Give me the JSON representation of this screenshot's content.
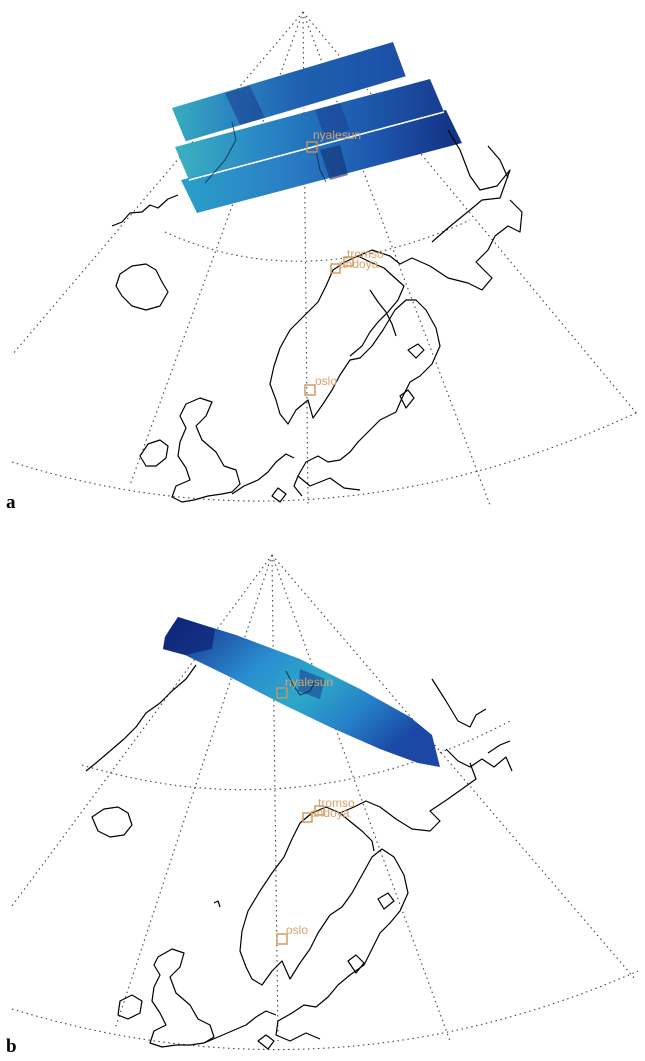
{
  "panels": [
    {
      "letter": "a",
      "swath_count": 3,
      "swath_colors": [
        "#0d2a7a",
        "#1f5fb0",
        "#2f8fc4",
        "#3ab0c2"
      ]
    },
    {
      "letter": "b",
      "swath_count": 1,
      "swath_colors": [
        "#0d1f6e",
        "#1a4f9e",
        "#2a8fd0",
        "#2fa6c6"
      ]
    }
  ],
  "sites": {
    "nyalesun": "nyalesun",
    "tromso": "tromso",
    "andoya": "andoya",
    "oslo": "oslo"
  },
  "colors": {
    "marker": "#c9965a",
    "label": "#d7a36a",
    "grid": "#444444",
    "coast": "#000000"
  }
}
